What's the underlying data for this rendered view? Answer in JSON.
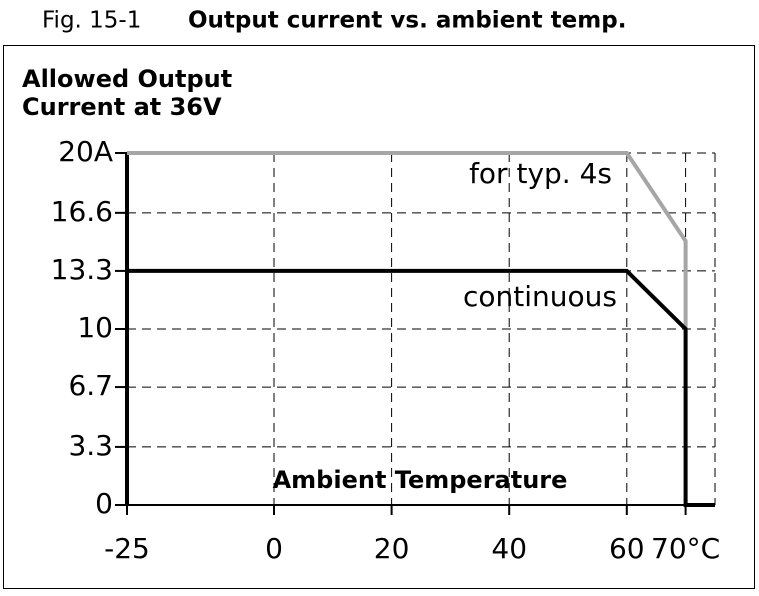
{
  "chart_data": {
    "type": "line",
    "caption_label": "Fig. 15-1",
    "title": "Output current vs. ambient temp.",
    "y_label_lines": [
      "Allowed Output",
      "Current at 36V"
    ],
    "x_label": "Ambient Temperature",
    "xlim": [
      -25,
      75
    ],
    "ylim": [
      0,
      20
    ],
    "xticks": [
      -25,
      0,
      20,
      40,
      60,
      {
        "value": 70,
        "label": "70°C"
      }
    ],
    "yticks": [
      0,
      3.3,
      6.7,
      10,
      13.3,
      16.6,
      {
        "value": 20,
        "label": "20A"
      }
    ],
    "grid": true,
    "series": [
      {
        "name": "for typ. 4s",
        "color": "#a6a6a6",
        "x": [
          -25,
          60,
          70,
          70
        ],
        "values": [
          20,
          20,
          15,
          10
        ]
      },
      {
        "name": "continuous",
        "color": "#000000",
        "x": [
          -25,
          60,
          70,
          70,
          75
        ],
        "values": [
          13.3,
          13.3,
          10,
          0,
          0
        ]
      }
    ]
  }
}
